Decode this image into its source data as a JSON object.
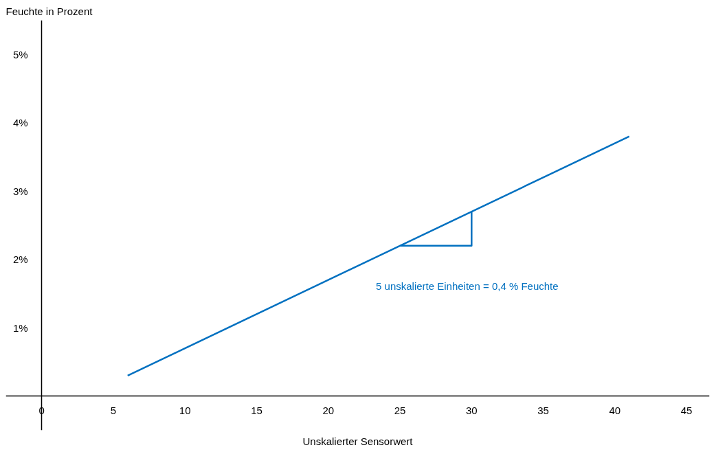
{
  "chart_data": {
    "type": "line",
    "xlabel": "Unskalierter Sensorwert",
    "ylabel": "Feuchte in Prozent",
    "xlim": [
      -2.5,
      46.6
    ],
    "ylim": [
      -0.5,
      5.5
    ],
    "xticks": [
      0,
      5,
      10,
      15,
      20,
      25,
      30,
      35,
      40,
      45
    ],
    "yticks": [
      {
        "value": 1,
        "label": "1%"
      },
      {
        "value": 2,
        "label": "2%"
      },
      {
        "value": 3,
        "label": "3%"
      },
      {
        "value": 4,
        "label": "4%"
      },
      {
        "value": 5,
        "label": "5%"
      }
    ],
    "series": [
      {
        "color": "#0070c0",
        "x": [
          6,
          41
        ],
        "values": [
          0.3,
          3.8
        ]
      },
      {
        "color": "#0070c0",
        "x": [
          25,
          30,
          30
        ],
        "values": [
          2.2,
          2.2,
          2.7
        ]
      }
    ],
    "annotations": [
      "5 unskalierte Einheiten = 0,4 % Feuchte"
    ],
    "grid": false,
    "marker": "none",
    "line_style": "solid"
  }
}
